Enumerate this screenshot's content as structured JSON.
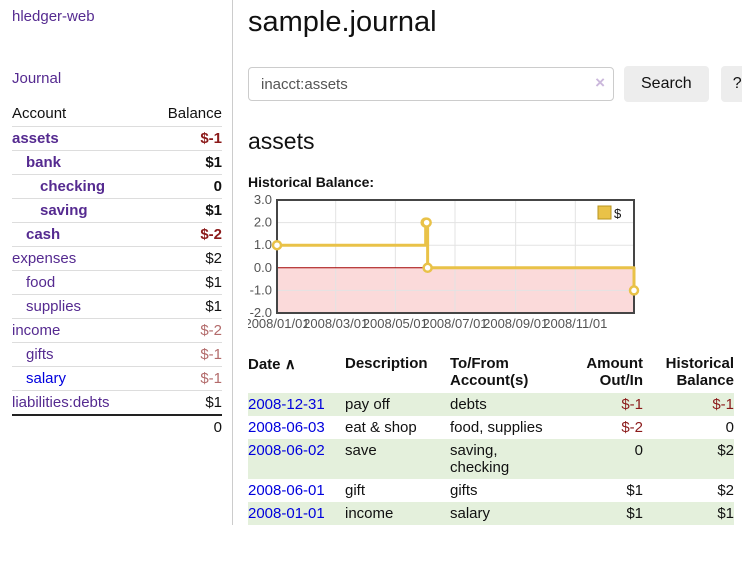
{
  "app": {
    "title": "hledger-web"
  },
  "sidebar": {
    "nav_journal": "Journal",
    "accounts_table": {
      "headers": {
        "account": "Account",
        "balance": "Balance"
      },
      "rows": [
        {
          "name": "assets",
          "level": 1,
          "bold": true,
          "balance": "$-1",
          "balance_style": "neg"
        },
        {
          "name": "bank",
          "level": 2,
          "bold": true,
          "balance": "$1",
          "balance_style": ""
        },
        {
          "name": "checking",
          "level": 3,
          "bold": true,
          "balance": "0",
          "balance_style": ""
        },
        {
          "name": "saving",
          "level": 3,
          "bold": true,
          "balance": "$1",
          "balance_style": ""
        },
        {
          "name": "cash",
          "level": 2,
          "bold": true,
          "balance": "$-2",
          "balance_style": "neg"
        },
        {
          "name": "expenses",
          "level": 1,
          "bold": false,
          "balance": "$2",
          "balance_style": ""
        },
        {
          "name": "food",
          "level": 2,
          "bold": false,
          "balance": "$1",
          "balance_style": ""
        },
        {
          "name": "supplies",
          "level": 2,
          "bold": false,
          "balance": "$1",
          "balance_style": ""
        },
        {
          "name": "income",
          "level": 1,
          "bold": false,
          "balance": "$-2",
          "balance_style": "negfaded"
        },
        {
          "name": "gifts",
          "level": 2,
          "bold": false,
          "balance": "$-1",
          "balance_style": "negfaded"
        },
        {
          "name": "salary",
          "level": 2,
          "bold": false,
          "balance": "$-1",
          "balance_style": "negfaded",
          "link_color": "blue"
        },
        {
          "name": "liabilities:debts",
          "level": 1,
          "bold": false,
          "balance": "$1",
          "balance_style": ""
        }
      ],
      "total": "0"
    }
  },
  "header": {
    "title": "sample.journal"
  },
  "search": {
    "value": "inacct:assets",
    "clear_icon": "×",
    "button_label": "Search",
    "help_label": "?"
  },
  "account_page": {
    "title": "assets",
    "chart_label": "Historical Balance:"
  },
  "chart_data": {
    "type": "line",
    "style": "step",
    "series": [
      {
        "name": "$",
        "color": "#e9c248",
        "points": [
          [
            "2008/01/01",
            1
          ],
          [
            "2008/06/01",
            2
          ],
          [
            "2008/06/02",
            2
          ],
          [
            "2008/06/03",
            0
          ],
          [
            "2008/12/31",
            -1
          ]
        ]
      }
    ],
    "xlim": [
      "2008/01/01",
      "2008/12/31"
    ],
    "ylim": [
      -2,
      3
    ],
    "x_ticks": [
      "2008/01/01",
      "2008/03/01",
      "2008/05/01",
      "2008/07/01",
      "2008/09/01",
      "2008/11/01"
    ],
    "y_ticks": [
      3,
      2,
      1,
      0,
      -1,
      -2
    ],
    "grid": true,
    "legend_position": "top-right",
    "negative_region_color": "#fbdada",
    "zero_line_color": "#a40000",
    "tick_label_color": "#545454",
    "border_color": "#454545"
  },
  "register": {
    "columns": [
      {
        "label": "Date",
        "sort_icon": "∧"
      },
      {
        "label": "Description"
      },
      {
        "label": "To/From\nAccount(s)"
      },
      {
        "label": "Amount\nOut/In"
      },
      {
        "label": "Historical\nBalance"
      }
    ],
    "rows": [
      {
        "date": "2008-12-31",
        "description": "pay off",
        "accounts": "debts",
        "amount": "$-1",
        "balance": "$-1"
      },
      {
        "date": "2008-06-03",
        "description": "eat & shop",
        "accounts": "food, supplies",
        "amount": "$-2",
        "balance": "0"
      },
      {
        "date": "2008-06-02",
        "description": "save",
        "accounts": "saving,\nchecking",
        "amount": "0",
        "balance": "$2"
      },
      {
        "date": "2008-06-01",
        "description": "gift",
        "accounts": "gifts",
        "amount": "$1",
        "balance": "$2"
      },
      {
        "date": "2008-01-01",
        "description": "income",
        "accounts": "salary",
        "amount": "$1",
        "balance": "$1"
      }
    ]
  },
  "colors": {
    "link_purple": "#552a90",
    "link_blue": "#0000dd",
    "negative": "#8b1a1a",
    "negative_faded": "#b36b6b",
    "row_highlight_green": "#e4f0dc",
    "button_bg": "#ededed"
  }
}
